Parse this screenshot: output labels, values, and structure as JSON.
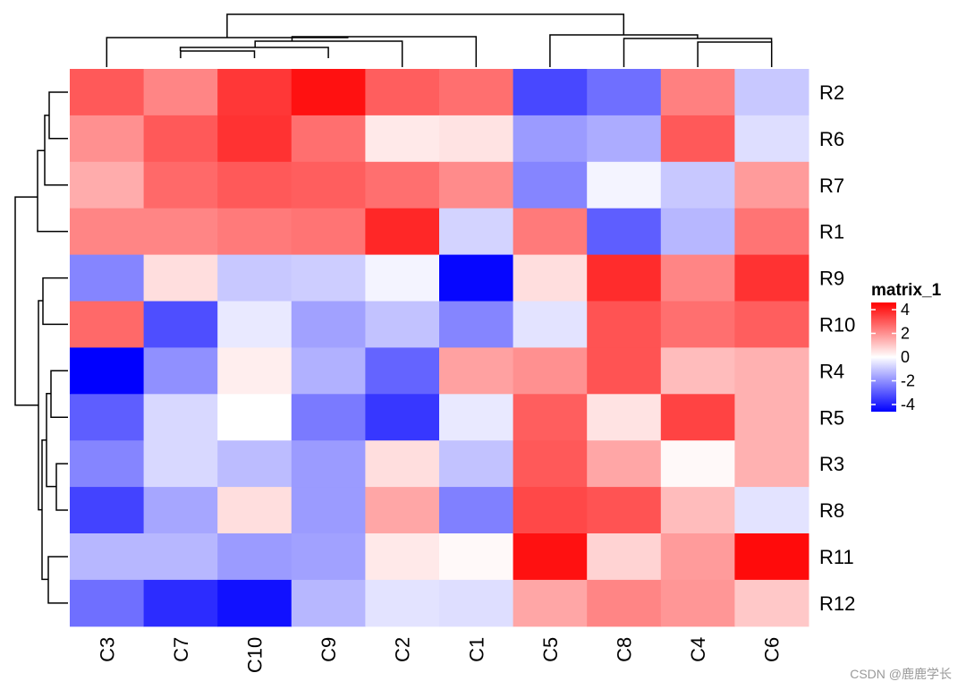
{
  "chart_data": {
    "type": "heatmap",
    "title": "",
    "columns": [
      "C3",
      "C7",
      "C10",
      "C9",
      "C2",
      "C1",
      "C5",
      "C8",
      "C4",
      "C6"
    ],
    "rows": [
      "R2",
      "R6",
      "R7",
      "R1",
      "R9",
      "R10",
      "R4",
      "R5",
      "R3",
      "R8",
      "R11",
      "R12"
    ],
    "values": [
      [
        3.0,
        2.2,
        3.6,
        4.3,
        2.9,
        2.6,
        -3.3,
        -2.6,
        2.3,
        -1.0
      ],
      [
        2.0,
        3.0,
        3.7,
        2.6,
        0.4,
        0.5,
        -1.8,
        -1.5,
        3.0,
        -0.6
      ],
      [
        1.5,
        2.7,
        3.0,
        2.9,
        2.6,
        2.1,
        -2.2,
        -0.2,
        -1.0,
        1.8
      ],
      [
        2.2,
        2.2,
        2.4,
        2.5,
        3.9,
        -0.8,
        2.4,
        -2.9,
        -1.3,
        2.5
      ],
      [
        -2.2,
        0.6,
        -1.0,
        -0.9,
        -0.2,
        -4.5,
        0.6,
        3.8,
        2.2,
        3.7
      ],
      [
        2.7,
        -3.2,
        -0.4,
        -1.7,
        -1.1,
        -2.2,
        -0.5,
        3.1,
        2.6,
        2.9
      ],
      [
        -4.6,
        -2.0,
        0.3,
        -1.4,
        -2.8,
        1.7,
        2.0,
        3.1,
        1.2,
        1.4
      ],
      [
        -2.9,
        -0.7,
        0.0,
        -2.4,
        -3.6,
        -0.4,
        2.9,
        0.5,
        3.4,
        1.4
      ],
      [
        -2.2,
        -0.7,
        -1.2,
        -1.8,
        0.6,
        -1.1,
        3.0,
        1.6,
        0.1,
        1.4
      ],
      [
        -3.4,
        -1.6,
        0.6,
        -1.8,
        1.6,
        -2.3,
        3.3,
        3.1,
        1.2,
        -0.5
      ],
      [
        -1.3,
        -1.3,
        -1.8,
        -1.7,
        0.4,
        0.1,
        4.3,
        0.8,
        1.8,
        4.4
      ],
      [
        -2.6,
        -3.8,
        -4.3,
        -1.3,
        -0.5,
        -0.6,
        1.6,
        2.2,
        1.9,
        1.0
      ]
    ],
    "row_dendrogram_order": [
      "R2",
      "R6",
      "R7",
      "R1",
      "R9",
      "R10",
      "R4",
      "R5",
      "R3",
      "R8",
      "R11",
      "R12"
    ],
    "column_dendrogram_order": [
      "C3",
      "C7",
      "C10",
      "C9",
      "C2",
      "C1",
      "C5",
      "C8",
      "C4",
      "C6"
    ],
    "legend": {
      "title": "matrix_1",
      "ticks": [
        "4",
        "2",
        "0",
        "-2",
        "-4"
      ],
      "tick_values": [
        4,
        2,
        0,
        -2,
        -4
      ],
      "placement": "right"
    },
    "color_scale": {
      "low": "#0000ff",
      "mid": "#ffffff",
      "high": "#ff0000",
      "min": -4.6,
      "max": 4.6
    },
    "grid": false
  },
  "watermark": "CSDN @鹿鹿学长"
}
